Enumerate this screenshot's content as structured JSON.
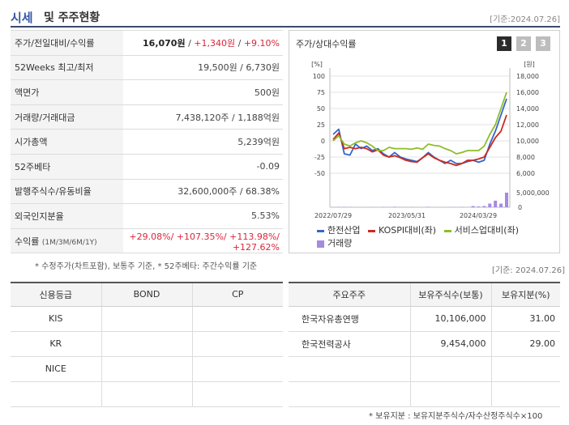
{
  "header": {
    "title_blue": "시세",
    "title_rest": "및 주주현황",
    "date": "[기준:2024.07.26]"
  },
  "quote_rows": [
    {
      "key": "주가/전일대비/수익률",
      "price": "16,070원",
      "sep1": " / ",
      "change": "+1,340원",
      "sep2": " / ",
      "rate": "+9.10%"
    },
    {
      "key": "52Weeks 최고/최저",
      "value": "19,500원 / 6,730원"
    },
    {
      "key": "액면가",
      "value": "500원"
    },
    {
      "key": "거래량/거래대금",
      "value": "7,438,120주 / 1,188억원"
    },
    {
      "key": "시가총액",
      "value": "5,239억원"
    },
    {
      "key": "52주베타",
      "value": "-0.09"
    },
    {
      "key": "발행주식수/유동비율",
      "value": "32,600,000주 / 68.38%"
    },
    {
      "key": "외국인지분율",
      "value": "5.53%"
    },
    {
      "key": "수익률",
      "key_small": "(1M/3M/6M/1Y)",
      "value_line1": "+29.08%/ +107.35%/ +113.98%/",
      "value_line2": "+127.62%"
    }
  ],
  "note1": "* 수정주가(차트포함), 보통주 기준, * 52주베타: 주간수익률 기준",
  "chart_box": {
    "title": "주가/상대수익률",
    "pages": [
      "1",
      "2",
      "3"
    ],
    "active_page": "1",
    "left_unit": "[%]",
    "right_unit": "[원]"
  },
  "chart_data": {
    "type": "line",
    "x_tick_labels": [
      "2022/07/29",
      "2023/05/31",
      "2024/03/29"
    ],
    "left_axis": {
      "ticks": [
        100,
        75,
        50,
        25,
        0,
        -25,
        -50
      ],
      "range": [
        -50,
        100
      ]
    },
    "right_axis_price": {
      "ticks": [
        "18,000",
        "16,000",
        "14,000",
        "12,000",
        "10,000",
        "8,000",
        "6,000"
      ],
      "range": [
        6000,
        18000
      ]
    },
    "right_axis_volume": {
      "ticks": [
        "5,000,000",
        "0"
      ],
      "range": [
        0,
        5000000
      ]
    },
    "series": [
      {
        "name": "한전산업",
        "color": "#3366cc",
        "values": [
          10,
          18,
          -20,
          -22,
          -5,
          -12,
          -8,
          -15,
          -12,
          -20,
          -25,
          -18,
          -25,
          -28,
          -30,
          -32,
          -26,
          -18,
          -25,
          -30,
          -35,
          -30,
          -35,
          -35,
          -32,
          -30,
          -33,
          -30,
          -5,
          15,
          40,
          65
        ]
      },
      {
        "name": "KOSPI대비(좌)",
        "color": "#cc2a1f",
        "values": [
          2,
          12,
          -12,
          -10,
          -12,
          -10,
          -12,
          -17,
          -14,
          -22,
          -25,
          -23,
          -26,
          -30,
          -32,
          -33,
          -26,
          -20,
          -26,
          -30,
          -33,
          -35,
          -38,
          -35,
          -30,
          -30,
          -28,
          -25,
          -10,
          5,
          15,
          40
        ]
      },
      {
        "name": "서비스업대비(좌)",
        "color": "#8fbc2b",
        "values": [
          0,
          8,
          -5,
          -8,
          -3,
          0,
          -3,
          -8,
          -15,
          -15,
          -10,
          -12,
          -12,
          -12,
          -13,
          -11,
          -13,
          -5,
          -7,
          -8,
          -12,
          -15,
          -20,
          -18,
          -15,
          -15,
          -15,
          -8,
          10,
          25,
          50,
          75
        ]
      }
    ],
    "volume": {
      "name": "거래량",
      "color": "#a48be0",
      "values": [
        0,
        0.02,
        0.02,
        0.02,
        0,
        0,
        0,
        0.01,
        0,
        0.02,
        0,
        0.03,
        0.01,
        0,
        0.01,
        0,
        0,
        0.03,
        0,
        0,
        0,
        0.01,
        0,
        0.02,
        0,
        0.08,
        0.05,
        0.08,
        0.25,
        0.45,
        0.25,
        1.0
      ]
    },
    "legend": [
      "한전산업",
      "KOSPI대비(좌)",
      "서비스업대비(좌)",
      "거래량"
    ]
  },
  "date2": "[기준: 2024.07.26]",
  "credit_table": {
    "headers": [
      "신용등급",
      "BOND",
      "CP"
    ],
    "rows": [
      [
        "KIS",
        "",
        ""
      ],
      [
        "KR",
        "",
        ""
      ],
      [
        "NICE",
        "",
        ""
      ],
      [
        "",
        "",
        ""
      ]
    ]
  },
  "holders_table": {
    "headers": [
      "주요주주",
      "보유주식수(보통)",
      "보유지분(%)"
    ],
    "rows": [
      [
        "한국자유총연맹",
        "10,106,000",
        "31.00"
      ],
      [
        "한국전력공사",
        "9,454,000",
        "29.00"
      ],
      [
        "",
        "",
        ""
      ],
      [
        "",
        "",
        ""
      ]
    ]
  },
  "footnote": "* 보유지분 : 보유지분주식수/자수산정주식수×100"
}
